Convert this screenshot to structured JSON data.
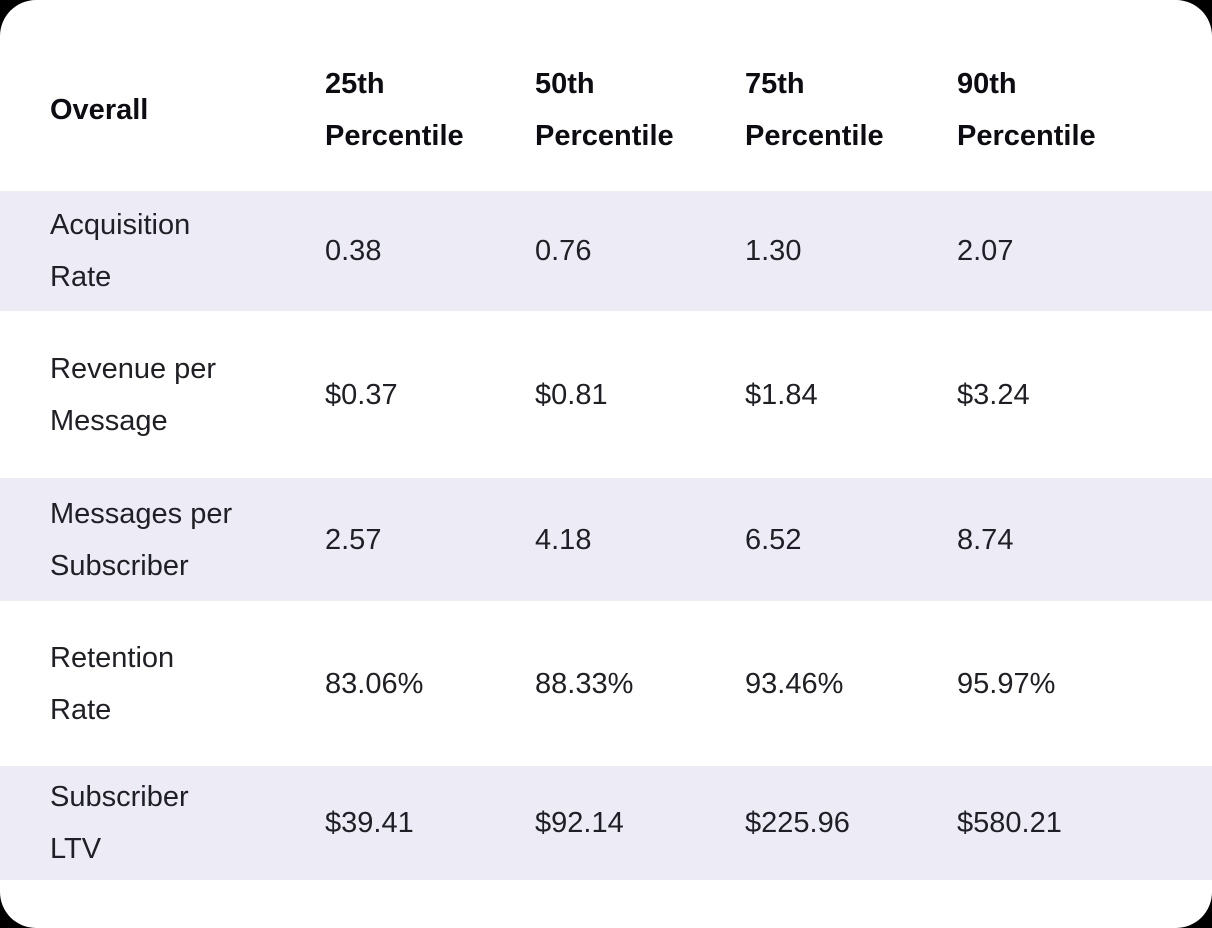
{
  "colors": {
    "page_background": "#000000",
    "card_background": "#ffffff",
    "stripe_row_background": "#edecf6",
    "header_text": "#0c0c12",
    "body_text": "#1f1f26"
  },
  "table": {
    "header": {
      "label": "Overall",
      "columns": [
        "25th\nPercentile",
        "50th\nPercentile",
        "75th\nPercentile",
        "90th\nPercentile"
      ]
    },
    "rows": [
      {
        "label": "Acquisition\nRate",
        "values": [
          "0.38",
          "0.76",
          "1.30",
          "2.07"
        ]
      },
      {
        "label": "Revenue per\nMessage",
        "values": [
          "$0.37",
          "$0.81",
          "$1.84",
          "$3.24"
        ]
      },
      {
        "label": "Messages per\nSubscriber",
        "values": [
          "2.57",
          "4.18",
          "6.52",
          "8.74"
        ]
      },
      {
        "label": "Retention\nRate",
        "values": [
          "83.06%",
          "88.33%",
          "93.46%",
          "95.97%"
        ]
      },
      {
        "label": "Subscriber\nLTV",
        "values": [
          "$39.41",
          "$92.14",
          "$225.96",
          "$580.21"
        ]
      }
    ]
  },
  "chart_data": {
    "type": "table",
    "title": "Overall",
    "columns": [
      "Overall",
      "25th Percentile",
      "50th Percentile",
      "75th Percentile",
      "90th Percentile"
    ],
    "rows": [
      [
        "Acquisition Rate",
        "0.38",
        "0.76",
        "1.30",
        "2.07"
      ],
      [
        "Revenue per Message",
        "$0.37",
        "$0.81",
        "$1.84",
        "$3.24"
      ],
      [
        "Messages per Subscriber",
        "2.57",
        "4.18",
        "6.52",
        "8.74"
      ],
      [
        "Retention Rate",
        "83.06%",
        "88.33%",
        "93.46%",
        "95.97%"
      ],
      [
        "Subscriber LTV",
        "$39.41",
        "$92.14",
        "$225.96",
        "$580.21"
      ]
    ]
  }
}
